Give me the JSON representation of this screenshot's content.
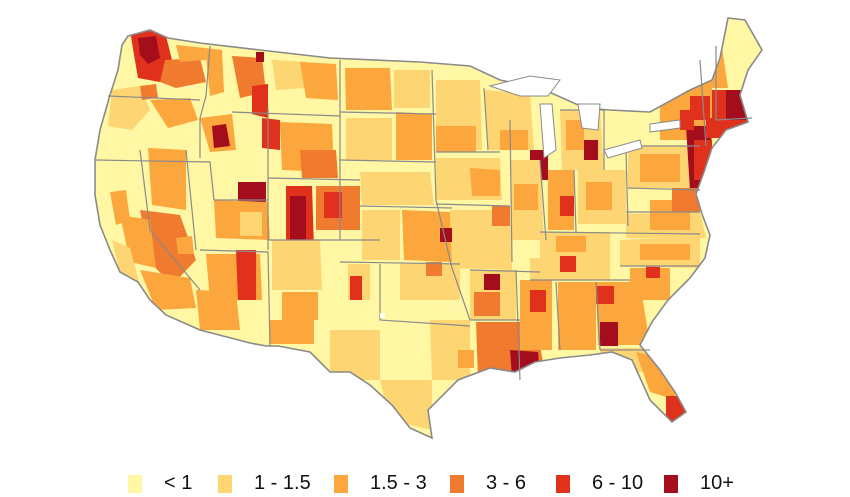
{
  "map": {
    "region": "contiguous-united-states",
    "border_color": "#8a8a8a",
    "background": "#ffffff"
  },
  "legend": {
    "items": [
      {
        "label": "< 1",
        "color": "#fff7a3"
      },
      {
        "label": "1 - 1.5",
        "color": "#fdd572"
      },
      {
        "label": "1.5 - 3",
        "color": "#fca63e"
      },
      {
        "label": "3 - 6",
        "color": "#f07a2e"
      },
      {
        "label": "6 - 10",
        "color": "#e0311c"
      },
      {
        "label": "10+",
        "color": "#a40d1c"
      }
    ]
  }
}
